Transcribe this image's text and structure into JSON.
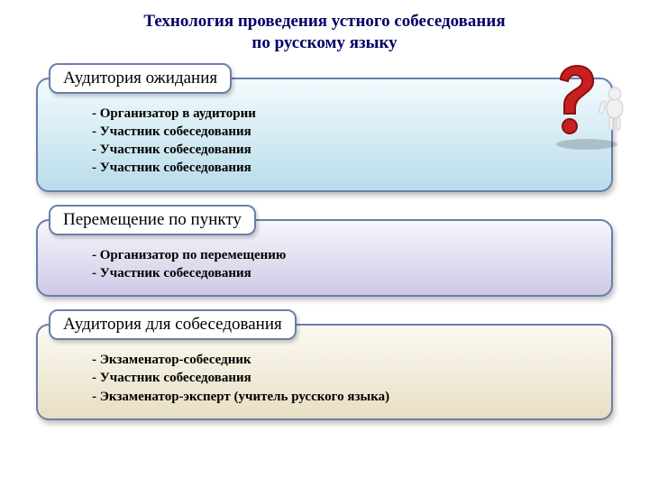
{
  "title_line1": "Технология проведения устного собеседования",
  "title_line2": "по русскому языку",
  "sections": [
    {
      "header": "Аудитория ожидания",
      "gradient": "grad-blue",
      "items": [
        "Организатор в аудитории",
        "Участник собеседования",
        "Участник собеседования",
        "Участник собеседования"
      ],
      "has_qmark": true
    },
    {
      "header": "Перемещение по пункту",
      "gradient": "grad-purple",
      "items": [
        "Организатор по перемещению",
        "Участник собеседования"
      ],
      "has_qmark": false
    },
    {
      "header": "Аудитория для собеседования",
      "gradient": "grad-tan",
      "items": [
        "Экзаменатор-собеседник",
        "Участник собеседования",
        "Экзаменатор-эксперт (учитель русского языка)"
      ],
      "has_qmark": false
    }
  ],
  "colors": {
    "title_color": "#000066",
    "border_color": "#6a7fa8",
    "qmark_red": "#c62020",
    "qmark_shadow": "#8e0f0f",
    "figure_body": "#f0f0f0",
    "figure_shadow": "#cfcfcf"
  }
}
